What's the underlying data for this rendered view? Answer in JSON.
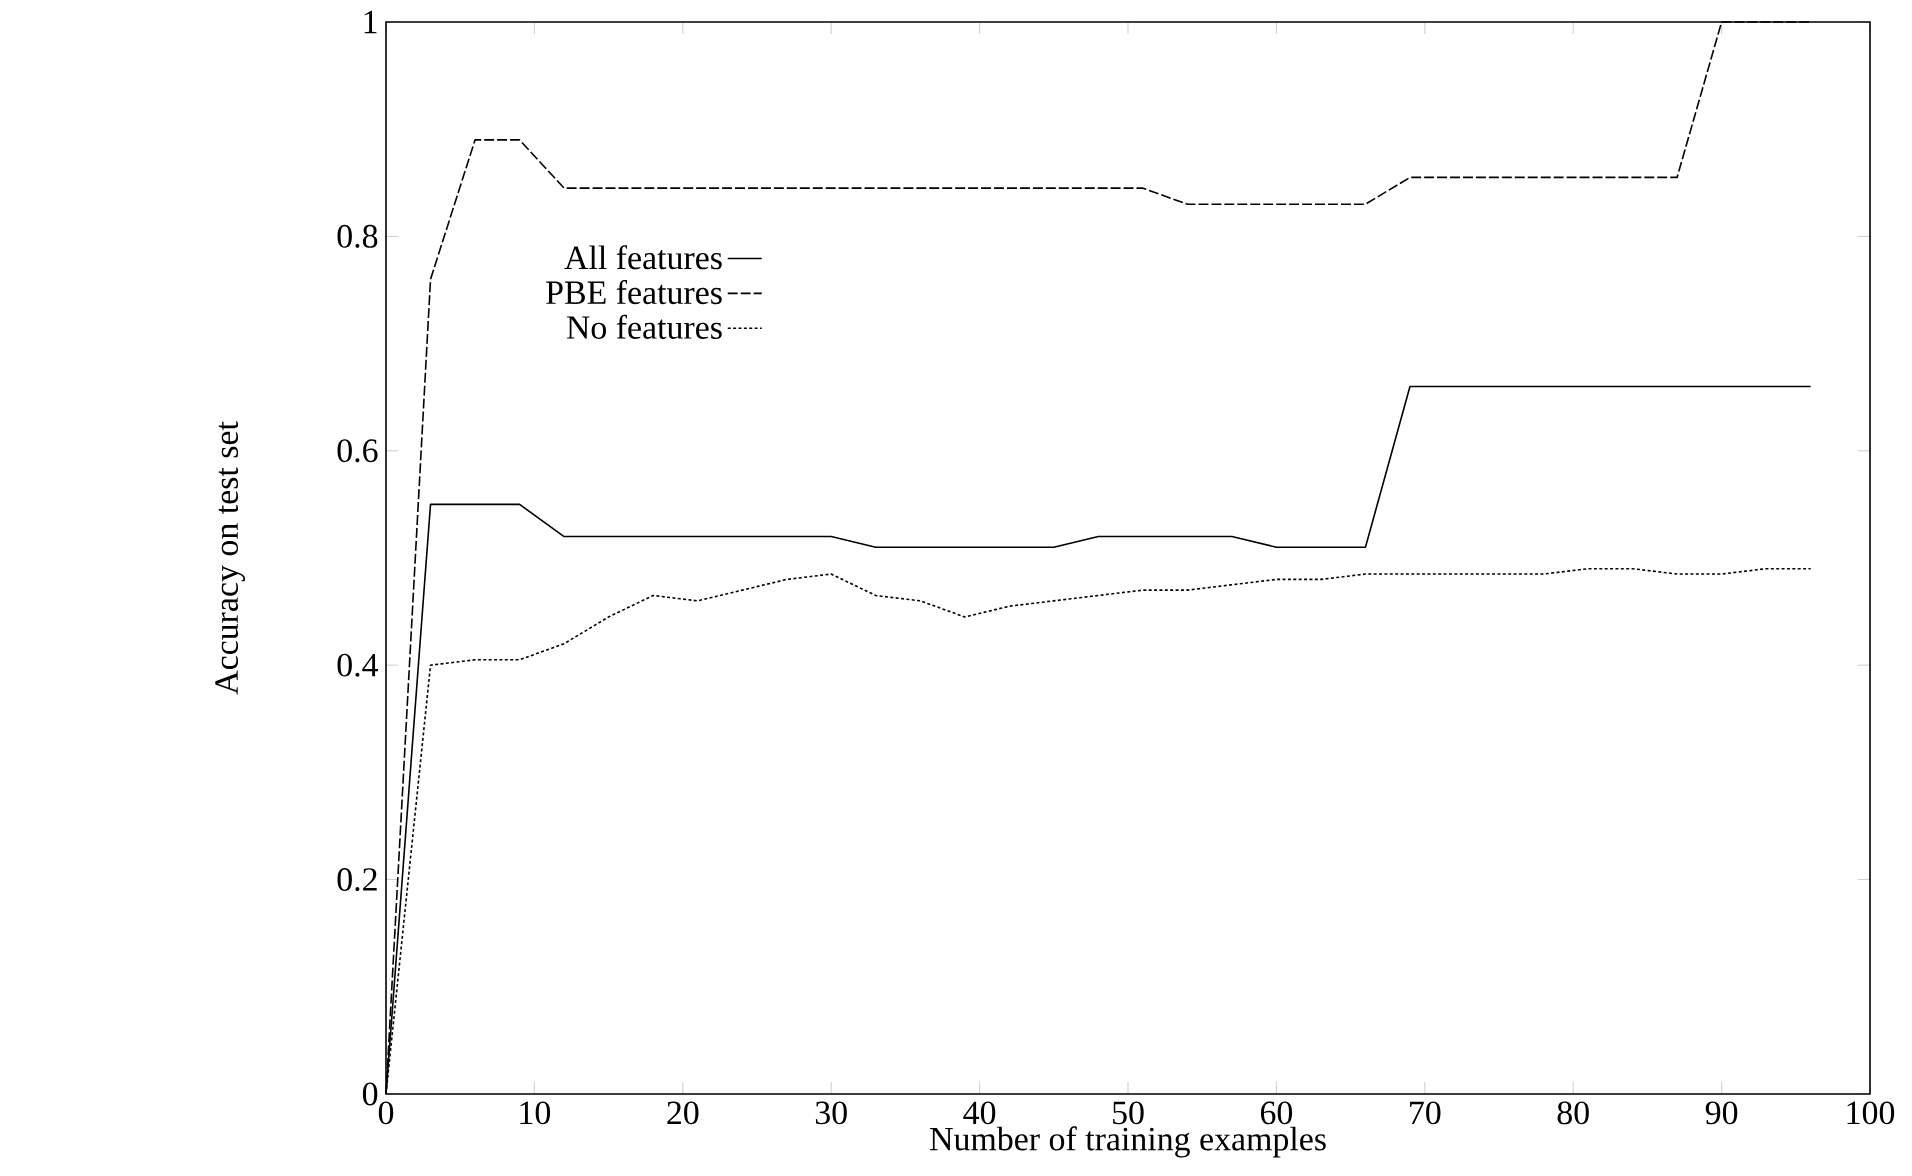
{
  "chart_data": {
    "type": "line",
    "xlabel": "Number of training examples",
    "ylabel": "Accuracy on test set",
    "x": [
      0,
      3,
      6,
      9,
      12,
      15,
      18,
      21,
      24,
      27,
      30,
      33,
      36,
      39,
      42,
      45,
      48,
      51,
      54,
      57,
      60,
      63,
      66,
      69,
      72,
      75,
      78,
      81,
      84,
      87,
      90,
      93,
      96
    ],
    "series": [
      {
        "name": "All features",
        "color": "#000000",
        "line_style": "solid",
        "values": [
          0,
          0.55,
          0.55,
          0.55,
          0.52,
          0.52,
          0.52,
          0.52,
          0.52,
          0.52,
          0.52,
          0.51,
          0.51,
          0.51,
          0.51,
          0.51,
          0.52,
          0.52,
          0.52,
          0.52,
          0.51,
          0.51,
          0.51,
          0.66,
          0.66,
          0.66,
          0.66,
          0.66,
          0.66,
          0.66,
          0.66,
          0.66,
          0.66
        ]
      },
      {
        "name": "PBE features",
        "color": "#000000",
        "line_style": "dashed",
        "values": [
          0,
          0.76,
          0.89,
          0.89,
          0.845,
          0.845,
          0.845,
          0.845,
          0.845,
          0.845,
          0.845,
          0.845,
          0.845,
          0.845,
          0.845,
          0.845,
          0.845,
          0.845,
          0.83,
          0.83,
          0.83,
          0.83,
          0.83,
          0.855,
          0.855,
          0.855,
          0.855,
          0.855,
          0.855,
          0.855,
          1,
          1,
          1
        ]
      },
      {
        "name": "No features",
        "color": "#000000",
        "line_style": "dotted",
        "values": [
          0,
          0.4,
          0.405,
          0.405,
          0.42,
          0.445,
          0.465,
          0.46,
          0.47,
          0.48,
          0.485,
          0.465,
          0.46,
          0.445,
          0.455,
          0.46,
          0.465,
          0.47,
          0.47,
          0.475,
          0.48,
          0.48,
          0.485,
          0.485,
          0.485,
          0.485,
          0.485,
          0.49,
          0.49,
          0.485,
          0.485,
          0.49,
          0.49
        ]
      }
    ],
    "xlim": [
      0,
      100
    ],
    "ylim": [
      0,
      1
    ],
    "xticks": [
      0,
      10,
      20,
      30,
      40,
      50,
      60,
      70,
      80,
      90,
      100
    ],
    "yticks": [
      0,
      0.2,
      0.4,
      0.6,
      0.8,
      1
    ],
    "grid": false,
    "legend": "top left",
    "marker": "none"
  }
}
